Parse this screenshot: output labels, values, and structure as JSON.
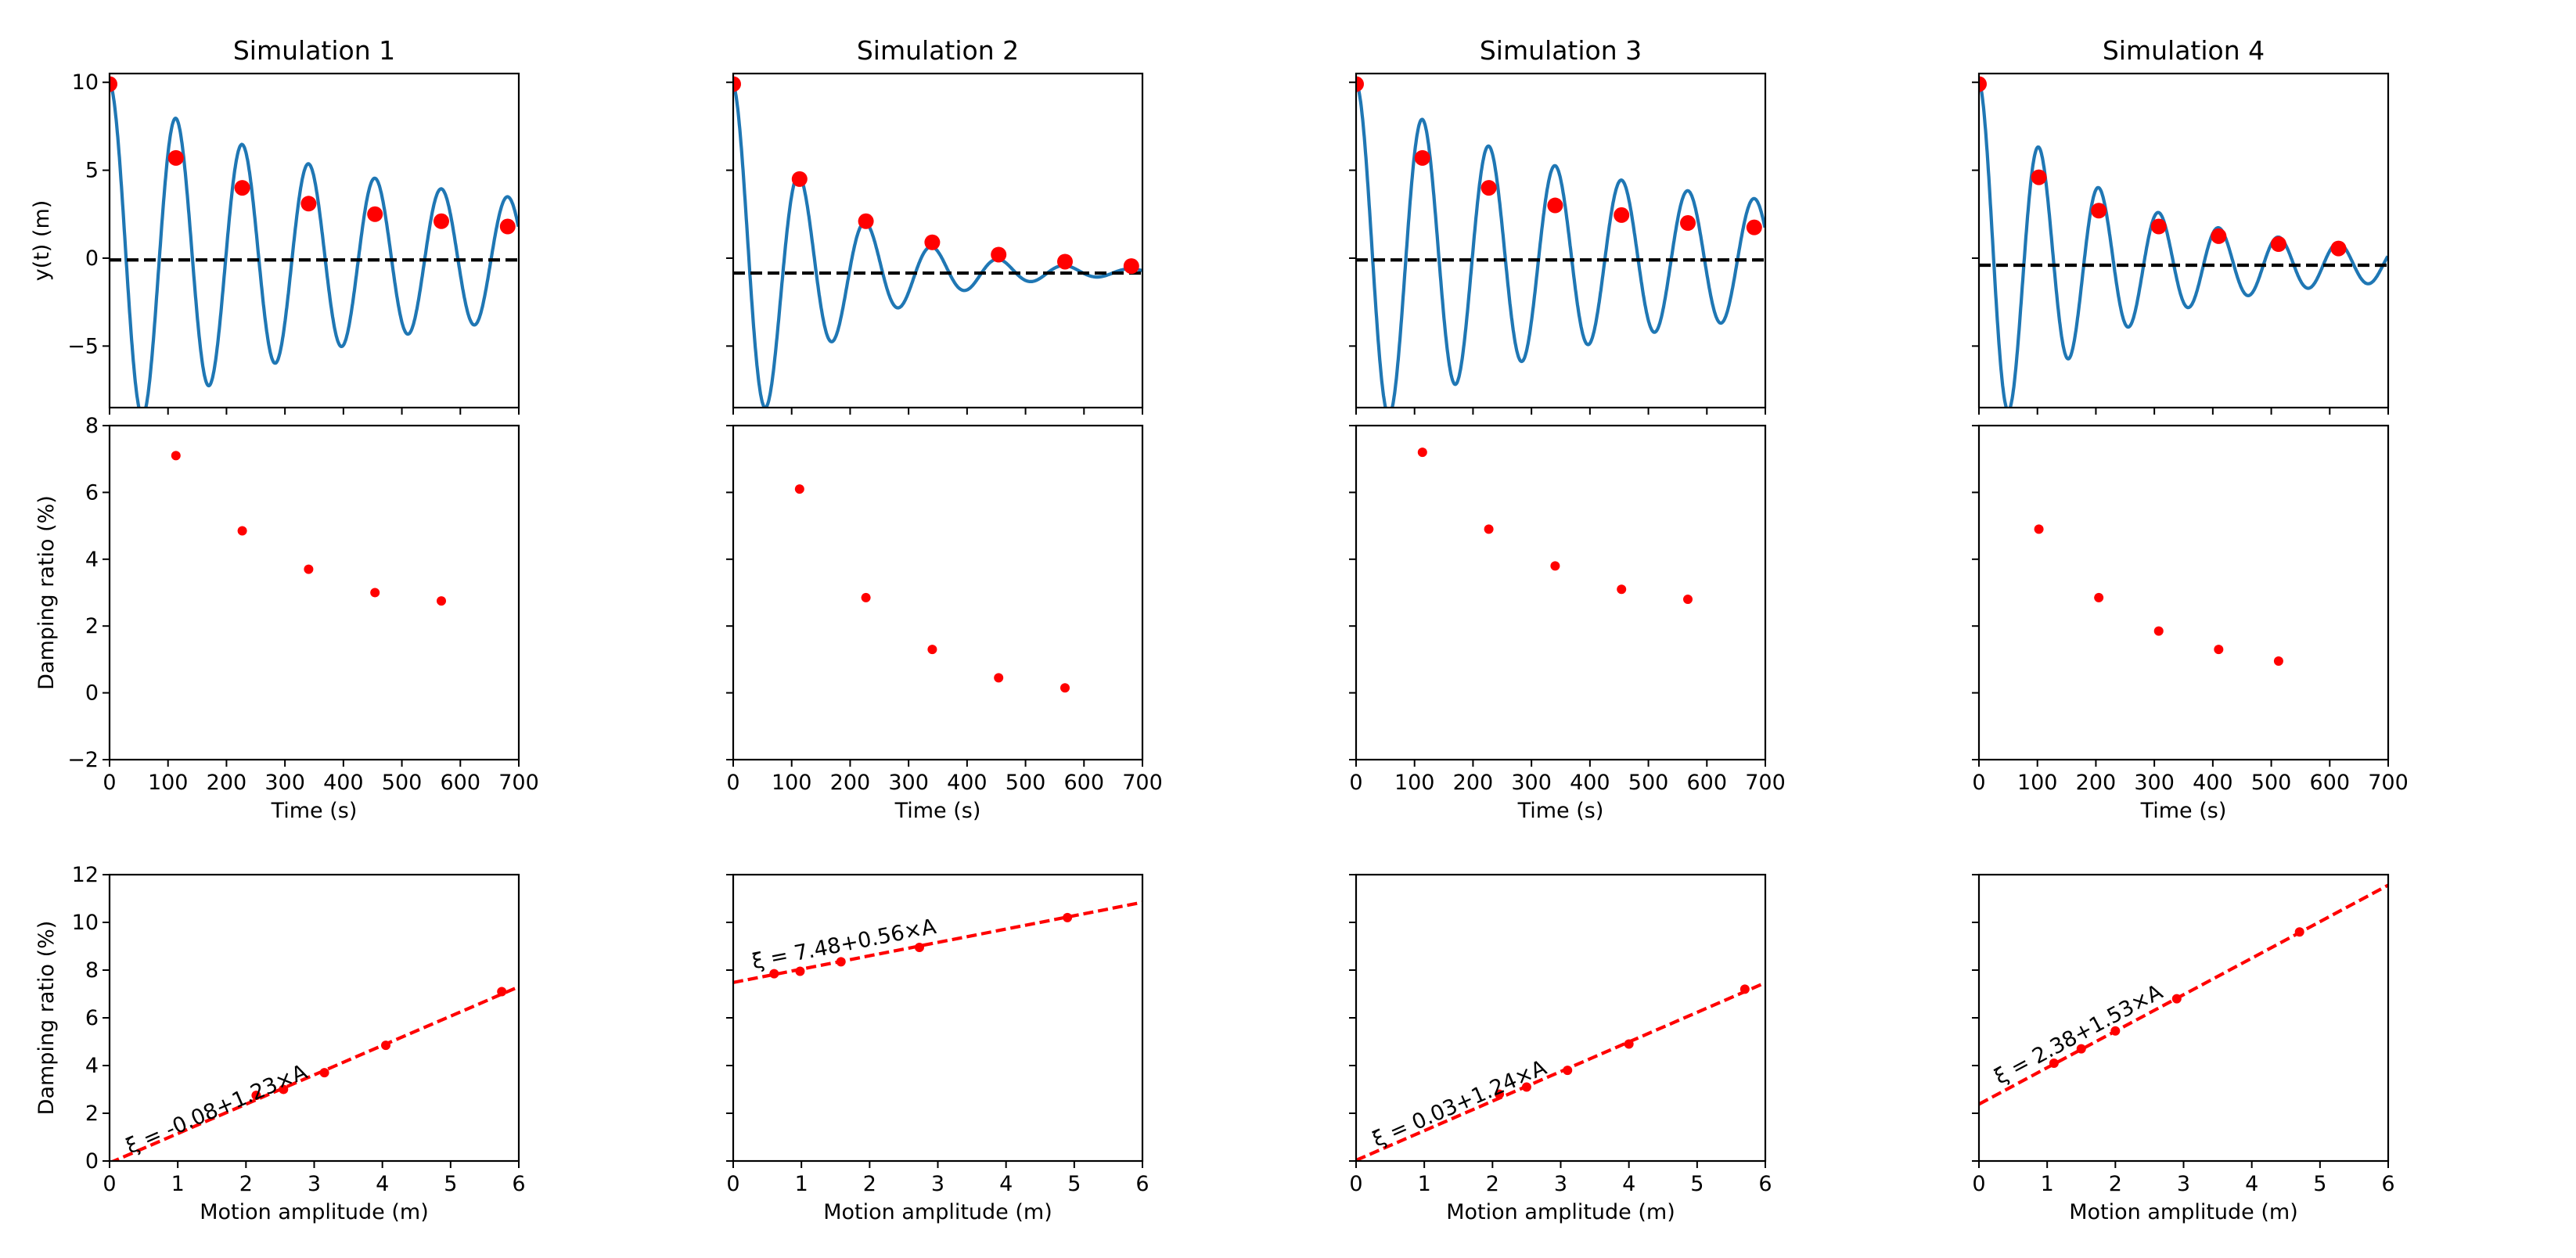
{
  "chart_data": [
    {
      "panel": "response",
      "type": "line",
      "title": "Simulation 1",
      "xlabel": "",
      "ylabel": "y(t) (m)",
      "xlim": [
        0,
        700
      ],
      "ylim": [
        -8.5,
        10.5
      ],
      "yticks": [
        -5,
        0,
        5,
        10
      ],
      "ytick_labels": [
        "−5",
        "0",
        "5",
        "10"
      ],
      "signal": {
        "A0": 10.0,
        "period": 113.5,
        "tau": 380,
        "floor": 2.25,
        "offset": -0.05
      },
      "mean_line": -0.1,
      "peaks": {
        "x": [
          0,
          113.5,
          227,
          340.5,
          454,
          567.5,
          681
        ],
        "y": [
          9.9,
          5.7,
          4.0,
          3.1,
          2.5,
          2.1,
          1.8
        ]
      }
    },
    {
      "panel": "response",
      "type": "line",
      "title": "Simulation 2",
      "xlabel": "",
      "ylabel": "",
      "xlim": [
        0,
        700
      ],
      "ylim": [
        -8.5,
        10.5
      ],
      "yticks": [
        -5,
        0,
        5,
        10
      ],
      "ytick_labels": [],
      "signal": {
        "A0": 10.7,
        "period": 113.5,
        "tau": 170,
        "floor": 0.0,
        "offset": -0.8
      },
      "mean_line": -0.85,
      "peaks": {
        "x": [
          0,
          113.5,
          227,
          340.5,
          454,
          567.5,
          681
        ],
        "y": [
          9.9,
          4.5,
          2.1,
          0.9,
          0.2,
          -0.2,
          -0.45
        ]
      }
    },
    {
      "panel": "response",
      "type": "line",
      "title": "Simulation 3",
      "xlabel": "",
      "ylabel": "",
      "xlim": [
        0,
        700
      ],
      "ylim": [
        -8.5,
        10.5
      ],
      "yticks": [
        -5,
        0,
        5,
        10
      ],
      "ytick_labels": [],
      "signal": {
        "A0": 10.0,
        "period": 113.5,
        "tau": 370,
        "floor": 2.2,
        "offset": -0.05
      },
      "mean_line": -0.1,
      "peaks": {
        "x": [
          0,
          113.5,
          227,
          340.5,
          454,
          567.5,
          681
        ],
        "y": [
          9.9,
          5.7,
          4.0,
          3.0,
          2.45,
          2.0,
          1.75
        ]
      }
    },
    {
      "panel": "response",
      "type": "line",
      "title": "Simulation 4",
      "xlabel": "",
      "ylabel": "",
      "xlim": [
        0,
        700
      ],
      "ylim": [
        -8.5,
        10.5
      ],
      "yticks": [
        -5,
        0,
        5,
        10
      ],
      "ytick_labels": [],
      "signal": {
        "A0": 10.4,
        "period": 102.5,
        "tau": 210,
        "floor": 0.7,
        "offset": -0.35
      },
      "mean_line": -0.4,
      "peaks": {
        "x": [
          0,
          102.5,
          205,
          307.5,
          410,
          512.5,
          615
        ],
        "y": [
          9.9,
          4.6,
          2.7,
          1.8,
          1.25,
          0.8,
          0.55
        ]
      }
    },
    {
      "panel": "damping_time",
      "type": "scatter",
      "xlabel": "Time (s)",
      "ylabel": "Damping ratio (%)",
      "xlim": [
        0,
        700
      ],
      "ylim": [
        -2,
        8
      ],
      "xticks": [
        0,
        100,
        200,
        300,
        400,
        500,
        600,
        700
      ],
      "xtick_labels": [
        "0",
        "100",
        "200",
        "300",
        "400",
        "500",
        "600",
        "700"
      ],
      "yticks": [
        -2,
        0,
        2,
        4,
        6,
        8
      ],
      "ytick_labels": [
        "−2",
        "0",
        "2",
        "4",
        "6",
        "8"
      ],
      "x": [
        113.5,
        227,
        340.5,
        454,
        567.5
      ],
      "y": [
        7.1,
        4.85,
        3.7,
        3.0,
        2.75
      ]
    },
    {
      "panel": "damping_time",
      "type": "scatter",
      "xlabel": "Time (s)",
      "ylabel": "",
      "xlim": [
        0,
        700
      ],
      "ylim": [
        -2,
        8
      ],
      "xticks": [
        0,
        100,
        200,
        300,
        400,
        500,
        600,
        700
      ],
      "xtick_labels": [
        "0",
        "100",
        "200",
        "300",
        "400",
        "500",
        "600",
        "700"
      ],
      "yticks": [
        -2,
        0,
        2,
        4,
        6,
        8
      ],
      "ytick_labels": [],
      "x": [
        113.5,
        227,
        340.5,
        454,
        567.5
      ],
      "y": [
        6.1,
        2.85,
        1.3,
        0.45,
        0.15
      ]
    },
    {
      "panel": "damping_time",
      "type": "scatter",
      "xlabel": "Time (s)",
      "ylabel": "",
      "xlim": [
        0,
        700
      ],
      "ylim": [
        -2,
        8
      ],
      "xticks": [
        0,
        100,
        200,
        300,
        400,
        500,
        600,
        700
      ],
      "xtick_labels": [
        "0",
        "100",
        "200",
        "300",
        "400",
        "500",
        "600",
        "700"
      ],
      "yticks": [
        -2,
        0,
        2,
        4,
        6,
        8
      ],
      "ytick_labels": [],
      "x": [
        113.5,
        227,
        340.5,
        454,
        567.5
      ],
      "y": [
        7.2,
        4.9,
        3.8,
        3.1,
        2.8
      ]
    },
    {
      "panel": "damping_time",
      "type": "scatter",
      "xlabel": "Time (s)",
      "ylabel": "",
      "xlim": [
        0,
        700
      ],
      "ylim": [
        -2,
        8
      ],
      "xticks": [
        0,
        100,
        200,
        300,
        400,
        500,
        600,
        700
      ],
      "xtick_labels": [
        "0",
        "100",
        "200",
        "300",
        "400",
        "500",
        "600",
        "700"
      ],
      "yticks": [
        -2,
        0,
        2,
        4,
        6,
        8
      ],
      "ytick_labels": [],
      "x": [
        102.5,
        205,
        307.5,
        410,
        512.5
      ],
      "y": [
        4.9,
        2.85,
        1.85,
        1.3,
        0.95
      ]
    },
    {
      "panel": "damping_amplitude",
      "type": "scatter",
      "xlabel": "Motion amplitude (m)",
      "ylabel": "Damping ratio (%)",
      "xlim": [
        0,
        6
      ],
      "ylim": [
        0,
        12
      ],
      "xticks": [
        0,
        1,
        2,
        3,
        4,
        5,
        6
      ],
      "xtick_labels": [
        "0",
        "1",
        "2",
        "3",
        "4",
        "5",
        "6"
      ],
      "yticks": [
        0,
        2,
        4,
        6,
        8,
        10,
        12
      ],
      "ytick_labels": [
        "0",
        "2",
        "4",
        "6",
        "8",
        "10",
        "12"
      ],
      "x": [
        2.15,
        2.55,
        3.15,
        4.05,
        5.75
      ],
      "y": [
        2.75,
        3.0,
        3.7,
        4.85,
        7.1
      ],
      "fit": {
        "intercept": -0.08,
        "slope": 1.23
      },
      "equation": "ξ = -0.08+1.23×A",
      "equation_at": [
        0.3,
        0.29
      ]
    },
    {
      "panel": "damping_amplitude",
      "type": "scatter",
      "xlabel": "Motion amplitude (m)",
      "ylabel": "",
      "xlim": [
        0,
        6
      ],
      "ylim": [
        0,
        12
      ],
      "xticks": [
        0,
        1,
        2,
        3,
        4,
        5,
        6
      ],
      "xtick_labels": [
        "0",
        "1",
        "2",
        "3",
        "4",
        "5",
        "6"
      ],
      "yticks": [
        0,
        2,
        4,
        6,
        8,
        10,
        12
      ],
      "ytick_labels": [],
      "x": [
        0.6,
        0.98,
        1.58,
        2.73,
        4.9
      ],
      "y": [
        7.85,
        7.95,
        8.35,
        8.95,
        10.2
      ],
      "fit": {
        "intercept": 7.48,
        "slope": 0.56
      },
      "equation": "ξ = 7.48+0.56×A",
      "equation_at": [
        0.3,
        8.05
      ]
    },
    {
      "panel": "damping_amplitude",
      "type": "scatter",
      "xlabel": "Motion amplitude (m)",
      "ylabel": "",
      "xlim": [
        0,
        6
      ],
      "ylim": [
        0,
        12
      ],
      "xticks": [
        0,
        1,
        2,
        3,
        4,
        5,
        6
      ],
      "xtick_labels": [
        "0",
        "1",
        "2",
        "3",
        "4",
        "5",
        "6"
      ],
      "yticks": [
        0,
        2,
        4,
        6,
        8,
        10,
        12
      ],
      "ytick_labels": [],
      "x": [
        2.1,
        2.5,
        3.1,
        4.0,
        5.7
      ],
      "y": [
        2.8,
        3.1,
        3.8,
        4.9,
        7.2
      ],
      "fit": {
        "intercept": 0.03,
        "slope": 1.24
      },
      "equation": "ξ = 0.03+1.24×A",
      "equation_at": [
        0.3,
        0.58
      ]
    },
    {
      "panel": "damping_amplitude",
      "type": "scatter",
      "xlabel": "Motion amplitude (m)",
      "ylabel": "",
      "xlim": [
        0,
        6
      ],
      "ylim": [
        0,
        12
      ],
      "xticks": [
        0,
        1,
        2,
        3,
        4,
        5,
        6
      ],
      "xtick_labels": [
        "0",
        "1",
        "2",
        "3",
        "4",
        "5",
        "6"
      ],
      "yticks": [
        0,
        2,
        4,
        6,
        8,
        10,
        12
      ],
      "ytick_labels": [],
      "x": [
        1.1,
        1.5,
        2.0,
        2.9,
        4.7
      ],
      "y": [
        4.1,
        4.7,
        5.45,
        6.8,
        9.6
      ],
      "fit": {
        "intercept": 2.38,
        "slope": 1.53
      },
      "equation": "ξ = 2.38+1.53×A",
      "equation_at": [
        0.3,
        3.2
      ]
    }
  ],
  "colors": {
    "line": "#1f77b4",
    "marker": "#ff0000",
    "fit": "#ff0000",
    "mean": "#000000",
    "frame": "#000000"
  }
}
